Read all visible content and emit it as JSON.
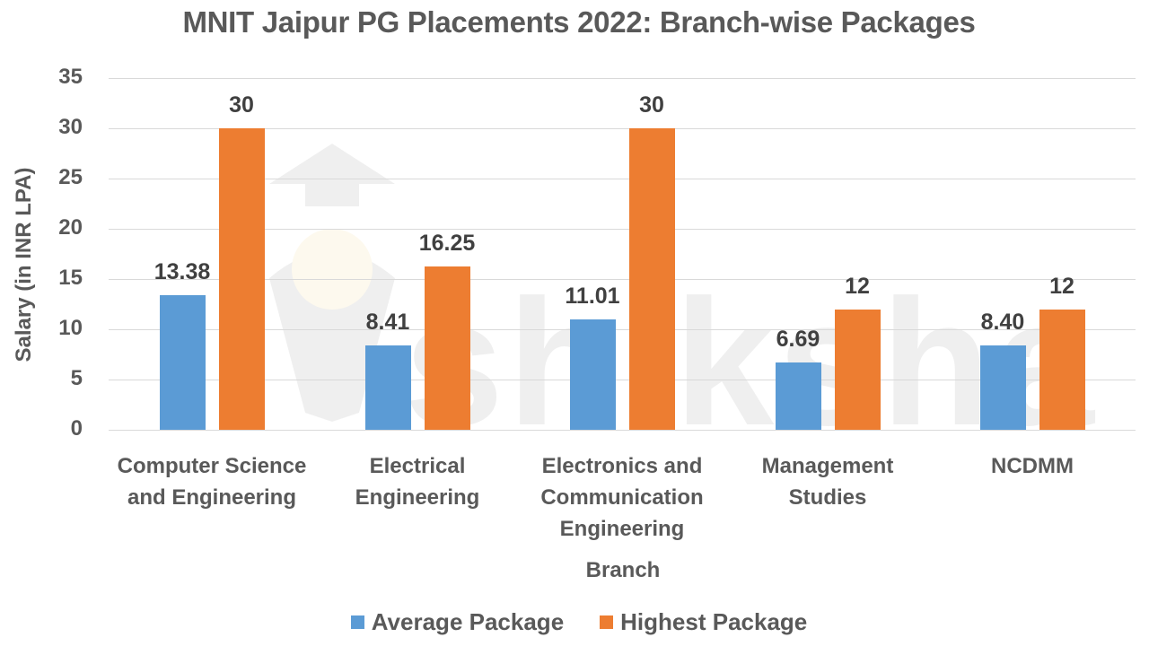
{
  "chart_data": {
    "type": "bar",
    "title": "MNIT Jaipur PG Placements 2022: Branch-wise Packages",
    "xlabel": "Branch",
    "ylabel": "Salary (in INR LPA)",
    "ylim": [
      0,
      35
    ],
    "yticks": [
      "0",
      "5",
      "10",
      "15",
      "20",
      "25",
      "30",
      "35"
    ],
    "grid": true,
    "legend_position": "bottom",
    "categories": [
      "Computer Science and Engineering",
      "Electrical Engineering",
      "Electronics and Communication Engineering",
      "Management Studies",
      "NCDMM"
    ],
    "series": [
      {
        "name": "Average Package",
        "color": "#5b9bd5",
        "values": [
          13.38,
          8.41,
          11.01,
          6.69,
          8.4
        ],
        "labels": [
          "13.38",
          "8.41",
          "11.01",
          "6.69",
          "8.40"
        ]
      },
      {
        "name": "Highest Package",
        "color": "#ed7d31",
        "values": [
          30,
          16.25,
          30,
          12,
          12
        ],
        "labels": [
          "30",
          "16.25",
          "30",
          "12",
          "12"
        ]
      }
    ]
  },
  "display": {
    "category_lines": [
      [
        "Computer Science",
        "and Engineering"
      ],
      [
        "Electrical",
        "Engineering"
      ],
      [
        "Electronics and",
        "Communication",
        "Engineering"
      ],
      [
        "Management",
        "Studies"
      ],
      [
        "NCDMM"
      ]
    ]
  },
  "watermark": {
    "text": "shiksha"
  }
}
